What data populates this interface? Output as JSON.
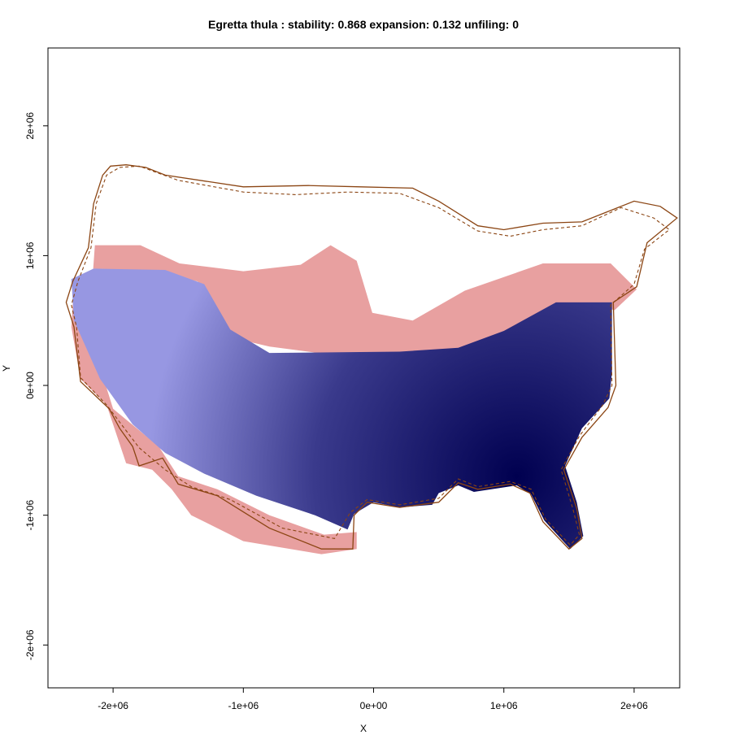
{
  "chart_data": {
    "type": "heatmap",
    "title": "Egretta thula : stability: 0.868 expansion: 0.132 unfiling: 0",
    "xlabel": "X",
    "ylabel": "Y",
    "xlim": [
      -2500000,
      2350000
    ],
    "ylim": [
      -2330000,
      2600000
    ],
    "x_ticks": [
      {
        "value": -2000000,
        "label": "-2e+06"
      },
      {
        "value": -1000000,
        "label": "-1e+06"
      },
      {
        "value": 0,
        "label": "0e+00"
      },
      {
        "value": 1000000,
        "label": "1e+06"
      },
      {
        "value": 2000000,
        "label": "2e+06"
      }
    ],
    "y_ticks": [
      {
        "value": -2000000,
        "label": "-2e+06"
      },
      {
        "value": -1000000,
        "label": "-1e+06"
      },
      {
        "value": 0,
        "label": "0e+00"
      },
      {
        "value": 1000000,
        "label": "1e+06"
      },
      {
        "value": 2000000,
        "label": "2e+06"
      }
    ],
    "stability": 0.868,
    "expansion": 0.132,
    "unfiling": 0,
    "colors": {
      "expansion": "#e8a0a0",
      "stability_light": "#9797e2",
      "stability_dark": "#000050",
      "outline": "#8b4513"
    },
    "expansion_region": [
      [
        -2140000,
        1080000
      ],
      [
        -1790000,
        1080000
      ],
      [
        -1490000,
        940000
      ],
      [
        -1000000,
        880000
      ],
      [
        -560000,
        930000
      ],
      [
        -330000,
        1080000
      ],
      [
        -130000,
        960000
      ],
      [
        -10000,
        560000
      ],
      [
        300000,
        500000
      ],
      [
        700000,
        730000
      ],
      [
        1300000,
        940000
      ],
      [
        1820000,
        940000
      ],
      [
        2020000,
        740000
      ],
      [
        1850000,
        580000
      ],
      [
        1650000,
        630000
      ],
      [
        1250000,
        470000
      ],
      [
        850000,
        230000
      ],
      [
        400000,
        250000
      ],
      [
        -200000,
        220000
      ],
      [
        -800000,
        300000
      ],
      [
        -1100000,
        370000
      ],
      [
        -1350000,
        800000
      ],
      [
        -1650000,
        880000
      ],
      [
        -2150000,
        900000
      ],
      [
        -2300000,
        780000
      ],
      [
        -2320000,
        450000
      ],
      [
        -2250000,
        50000
      ],
      [
        -2050000,
        -150000
      ],
      [
        -1900000,
        -600000
      ],
      [
        -1820000,
        -620000
      ],
      [
        -1700000,
        -650000
      ],
      [
        -1550000,
        -800000
      ],
      [
        -1400000,
        -1000000
      ],
      [
        -1000000,
        -1200000
      ],
      [
        -400000,
        -1300000
      ],
      [
        -130000,
        -1260000
      ],
      [
        -130000,
        -1130000
      ],
      [
        -380000,
        -1150000
      ],
      [
        -800000,
        -1000000
      ],
      [
        -1200000,
        -800000
      ],
      [
        -1500000,
        -700000
      ],
      [
        -1650000,
        -470000
      ],
      [
        -2000000,
        -180000
      ],
      [
        -2150000,
        300000
      ],
      [
        -2160000,
        800000
      ]
    ],
    "stability_region": [
      [
        -2320000,
        820000
      ],
      [
        -2150000,
        900000
      ],
      [
        -1600000,
        890000
      ],
      [
        -1300000,
        780000
      ],
      [
        -1100000,
        430000
      ],
      [
        -800000,
        250000
      ],
      [
        200000,
        260000
      ],
      [
        650000,
        290000
      ],
      [
        1000000,
        420000
      ],
      [
        1400000,
        640000
      ],
      [
        1830000,
        640000
      ],
      [
        1830000,
        100000
      ],
      [
        1810000,
        -100000
      ],
      [
        1600000,
        -330000
      ],
      [
        1470000,
        -620000
      ],
      [
        1560000,
        -900000
      ],
      [
        1610000,
        -1160000
      ],
      [
        1510000,
        -1260000
      ],
      [
        1310000,
        -1040000
      ],
      [
        1210000,
        -840000
      ],
      [
        1100000,
        -770000
      ],
      [
        770000,
        -820000
      ],
      [
        650000,
        -770000
      ],
      [
        500000,
        -830000
      ],
      [
        450000,
        -920000
      ],
      [
        200000,
        -940000
      ],
      [
        0,
        -900000
      ],
      [
        -150000,
        -990000
      ],
      [
        -200000,
        -1110000
      ],
      [
        -450000,
        -1000000
      ],
      [
        -900000,
        -850000
      ],
      [
        -1300000,
        -680000
      ],
      [
        -1600000,
        -520000
      ],
      [
        -1850000,
        -300000
      ],
      [
        -2100000,
        50000
      ],
      [
        -2300000,
        500000
      ]
    ],
    "dark_center": [
      1100000,
      -700000
    ],
    "light_center": [
      -1400000,
      630000
    ],
    "outline_solid": [
      [
        -2020000,
        1690000
      ],
      [
        -1900000,
        1700000
      ],
      [
        -1750000,
        1680000
      ],
      [
        -1600000,
        1620000
      ],
      [
        -1000000,
        1530000
      ],
      [
        -500000,
        1540000
      ],
      [
        -100000,
        1530000
      ],
      [
        300000,
        1520000
      ],
      [
        500000,
        1420000
      ],
      [
        800000,
        1230000
      ],
      [
        1000000,
        1200000
      ],
      [
        1300000,
        1250000
      ],
      [
        1600000,
        1260000
      ],
      [
        2000000,
        1420000
      ],
      [
        2200000,
        1380000
      ],
      [
        2330000,
        1290000
      ],
      [
        2100000,
        1100000
      ],
      [
        2020000,
        760000
      ],
      [
        1840000,
        640000
      ],
      [
        1860000,
        0
      ],
      [
        1800000,
        -170000
      ],
      [
        1600000,
        -400000
      ],
      [
        1460000,
        -650000
      ],
      [
        1560000,
        -950000
      ],
      [
        1600000,
        -1180000
      ],
      [
        1500000,
        -1260000
      ],
      [
        1300000,
        -1050000
      ],
      [
        1200000,
        -830000
      ],
      [
        1050000,
        -760000
      ],
      [
        800000,
        -800000
      ],
      [
        650000,
        -750000
      ],
      [
        500000,
        -900000
      ],
      [
        200000,
        -940000
      ],
      [
        -50000,
        -900000
      ],
      [
        -150000,
        -1000000
      ],
      [
        -160000,
        -1260000
      ],
      [
        -400000,
        -1260000
      ],
      [
        -800000,
        -1100000
      ],
      [
        -1200000,
        -850000
      ],
      [
        -1500000,
        -760000
      ],
      [
        -1620000,
        -560000
      ],
      [
        -1800000,
        -620000
      ],
      [
        -1850000,
        -470000
      ],
      [
        -1950000,
        -330000
      ],
      [
        -2030000,
        -180000
      ],
      [
        -2250000,
        30000
      ],
      [
        -2300000,
        450000
      ],
      [
        -2360000,
        640000
      ],
      [
        -2310000,
        800000
      ],
      [
        -2190000,
        1060000
      ],
      [
        -2150000,
        1400000
      ],
      [
        -2080000,
        1620000
      ]
    ],
    "outline_dashed": [
      [
        -1950000,
        1680000
      ],
      [
        -1800000,
        1690000
      ],
      [
        -1500000,
        1580000
      ],
      [
        -1000000,
        1490000
      ],
      [
        -600000,
        1470000
      ],
      [
        -200000,
        1490000
      ],
      [
        200000,
        1480000
      ],
      [
        500000,
        1370000
      ],
      [
        800000,
        1190000
      ],
      [
        1050000,
        1150000
      ],
      [
        1300000,
        1200000
      ],
      [
        1600000,
        1230000
      ],
      [
        1900000,
        1370000
      ],
      [
        2150000,
        1290000
      ],
      [
        2270000,
        1200000
      ],
      [
        2080000,
        1050000
      ],
      [
        2000000,
        780000
      ],
      [
        1820000,
        620000
      ],
      [
        1830000,
        0
      ],
      [
        1760000,
        -150000
      ],
      [
        1580000,
        -390000
      ],
      [
        1440000,
        -650000
      ],
      [
        1530000,
        -950000
      ],
      [
        1580000,
        -1150000
      ],
      [
        1510000,
        -1230000
      ],
      [
        1320000,
        -1030000
      ],
      [
        1210000,
        -800000
      ],
      [
        1050000,
        -740000
      ],
      [
        800000,
        -780000
      ],
      [
        650000,
        -720000
      ],
      [
        500000,
        -870000
      ],
      [
        200000,
        -920000
      ],
      [
        -50000,
        -880000
      ],
      [
        -180000,
        -980000
      ],
      [
        -300000,
        -1180000
      ],
      [
        -700000,
        -1100000
      ],
      [
        -1100000,
        -880000
      ],
      [
        -1400000,
        -780000
      ],
      [
        -1600000,
        -650000
      ],
      [
        -1800000,
        -480000
      ],
      [
        -2050000,
        -150000
      ],
      [
        -2250000,
        60000
      ],
      [
        -2280000,
        450000
      ],
      [
        -2320000,
        620000
      ],
      [
        -2270000,
        800000
      ],
      [
        -2170000,
        1060000
      ],
      [
        -2130000,
        1400000
      ],
      [
        -2050000,
        1620000
      ]
    ]
  }
}
